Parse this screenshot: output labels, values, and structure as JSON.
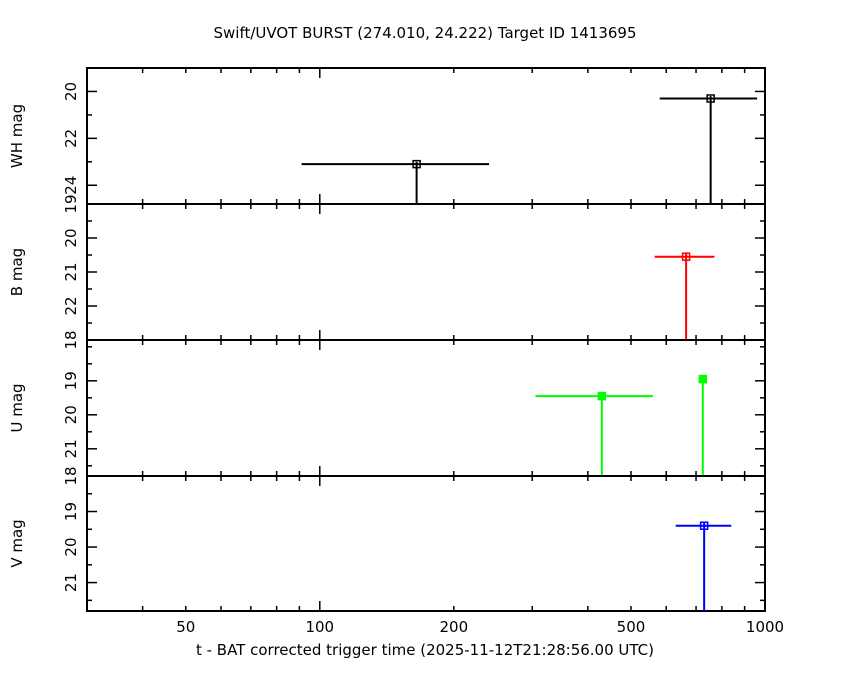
{
  "chart_data": {
    "type": "scatter",
    "title": "Swift/UVOT BURST (274.010, 24.222) Target ID 1413695",
    "xlabel": "t - BAT corrected trigger time (2025-11-12T21:28:56.00 UTC)",
    "xscale": "log",
    "xlim": [
      30,
      1000
    ],
    "xticks_labeled": [
      50,
      100,
      200,
      500,
      1000
    ],
    "colors": {
      "WH": "#000000",
      "B": "#ff0000",
      "U": "#00ff00",
      "V": "#0000ff"
    },
    "panels": [
      {
        "name": "WH",
        "ylabel": "WH mag",
        "ylim": [
          24.8,
          19.0
        ],
        "yticks": [
          20,
          22,
          24
        ],
        "extra_tick_label": "19",
        "points": [
          {
            "x": 165,
            "y": 23.1,
            "xerr": [
              91,
              240
            ],
            "yerr": [
              23.0,
              24.8
            ]
          },
          {
            "x": 755,
            "y": 20.3,
            "xerr": [
              580,
              960
            ],
            "yerr": [
              20.2,
              24.8
            ]
          }
        ]
      },
      {
        "name": "B",
        "ylabel": "B mag",
        "ylim": [
          23.0,
          19.0
        ],
        "yticks": [
          20,
          21,
          22
        ],
        "extra_tick_label": "18",
        "points": [
          {
            "x": 665,
            "y": 20.55,
            "xerr": [
              565,
              770
            ],
            "yerr": [
              20.45,
              23.0
            ]
          }
        ]
      },
      {
        "name": "U",
        "ylabel": "U mag",
        "ylim": [
          21.8,
          17.8
        ],
        "yticks": [
          19,
          20,
          21
        ],
        "extra_tick_label": "18",
        "points": [
          {
            "x": 430,
            "y": 19.45,
            "xerr": [
              305,
              560
            ],
            "yerr": [
              19.35,
              21.8
            ]
          },
          {
            "x": 725,
            "y": 18.95,
            "xerr": null,
            "yerr": [
              18.85,
              21.8
            ]
          }
        ]
      },
      {
        "name": "V",
        "ylabel": "V mag",
        "ylim": [
          21.8,
          18.0
        ],
        "yticks": [
          19,
          20,
          21
        ],
        "extra_tick_label": null,
        "points": [
          {
            "x": 730,
            "y": 19.4,
            "xerr": [
              630,
              840
            ],
            "yerr": [
              19.3,
              21.8
            ]
          }
        ]
      }
    ]
  }
}
